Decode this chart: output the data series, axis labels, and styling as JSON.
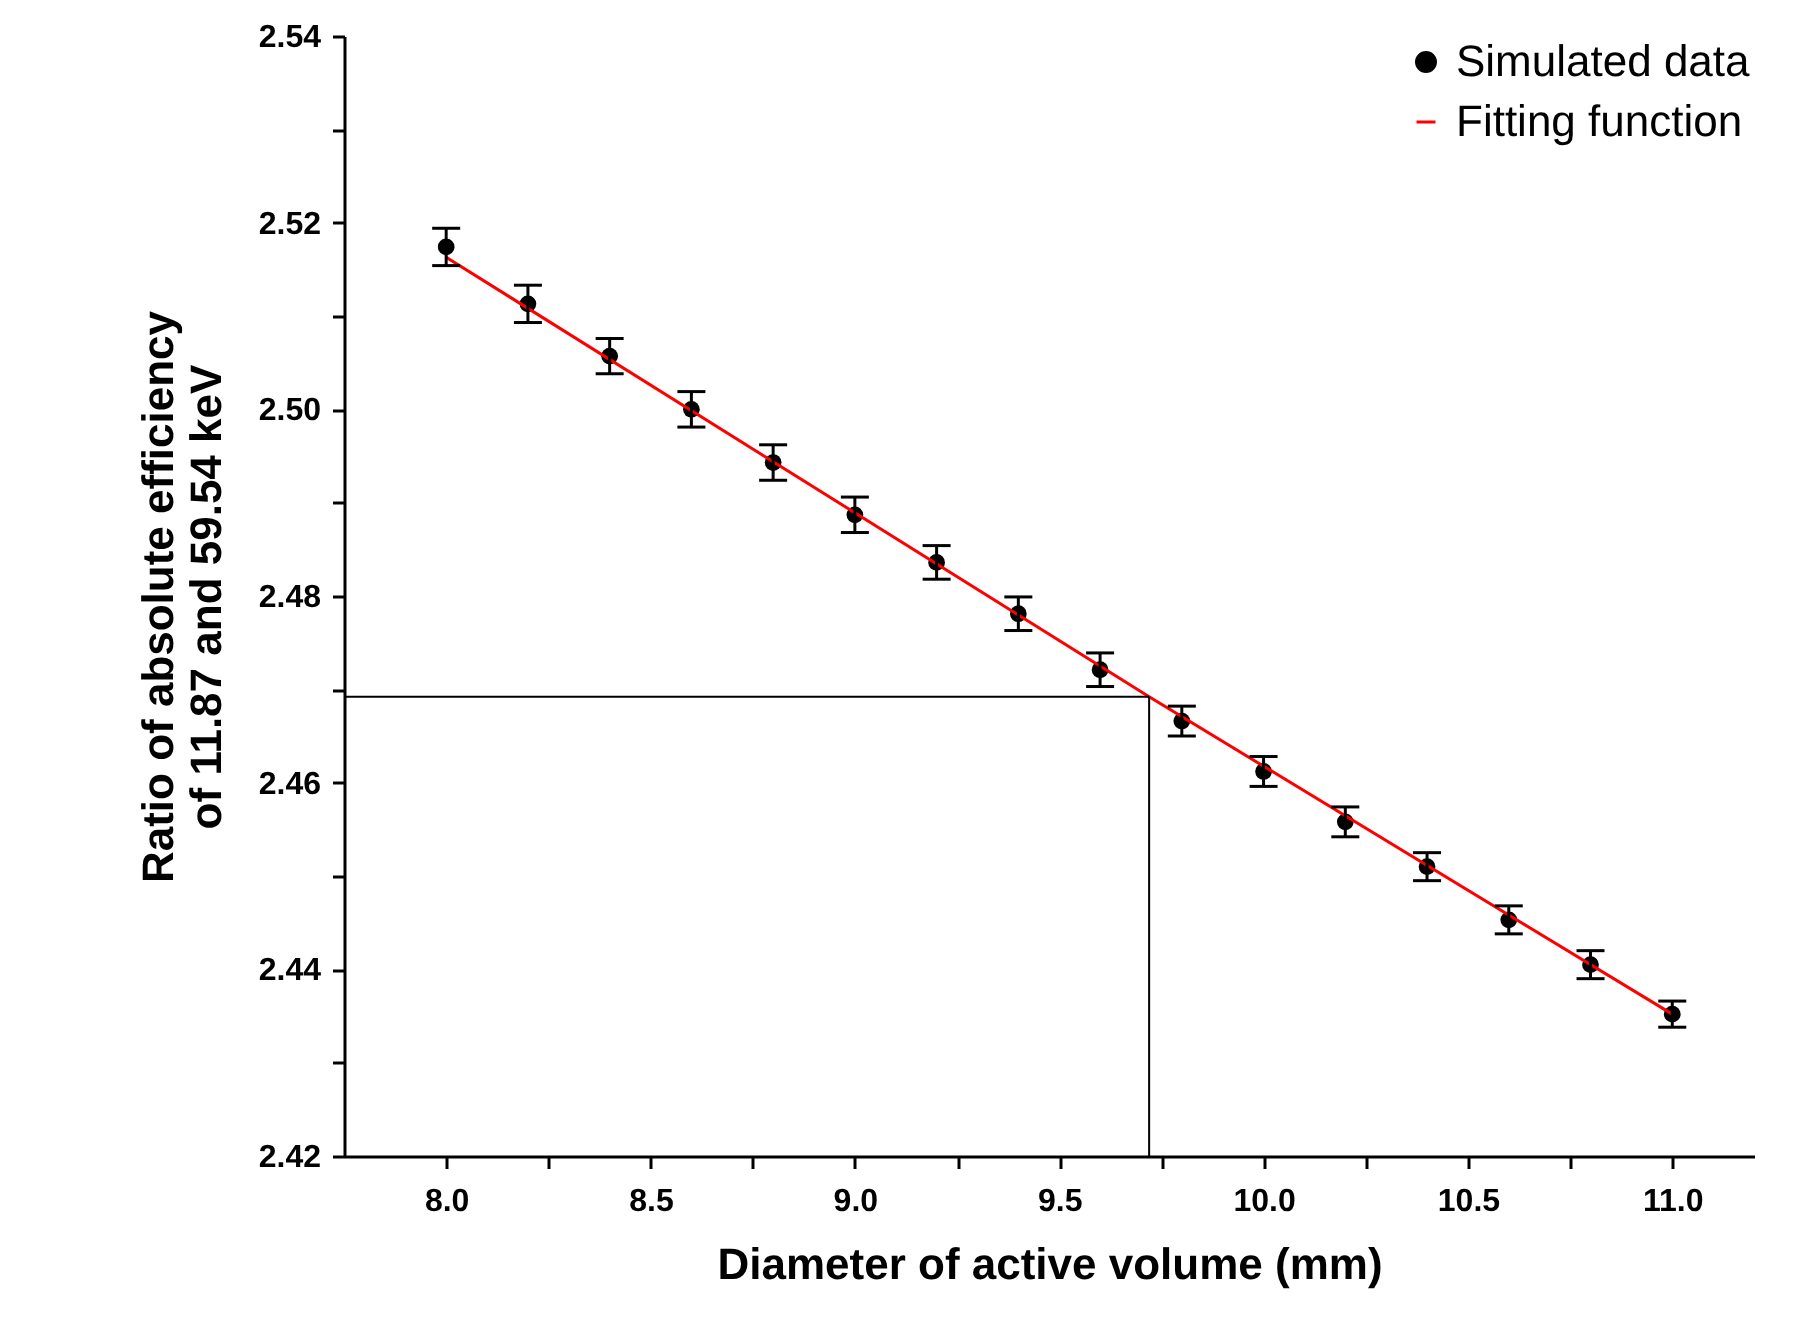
{
  "chart_data": {
    "type": "scatter",
    "xlabel": "Diameter of active volume (mm)",
    "ylabel": "Ratio of absolute efficiency\nof 11.87 and 59.54 keV",
    "x": [
      8.0,
      8.2,
      8.4,
      8.6,
      8.8,
      9.0,
      9.2,
      9.4,
      9.6,
      9.8,
      10.0,
      10.2,
      10.4,
      10.6,
      10.8,
      11.0
    ],
    "series": [
      {
        "name": "Simulated data",
        "marker": "circle",
        "color": "#000000",
        "values": [
          2.5174,
          2.5113,
          2.5057,
          2.5,
          2.4943,
          2.4887,
          2.4836,
          2.4781,
          2.4721,
          2.4666,
          2.4612,
          2.4558,
          2.451,
          2.4453,
          2.4405,
          2.4352
        ],
        "errors": [
          0.002,
          0.002,
          0.0019,
          0.0019,
          0.0019,
          0.0019,
          0.0018,
          0.0018,
          0.0018,
          0.0016,
          0.0016,
          0.0016,
          0.0015,
          0.0015,
          0.0015,
          0.0014
        ]
      },
      {
        "name": "Fitting function",
        "type": "line",
        "marker": "none",
        "color": "#ff0000",
        "x": [
          8.0,
          9.72,
          11.0
        ],
        "values": [
          2.5163,
          2.4692,
          2.4352
        ]
      }
    ],
    "ref_lines": [
      {
        "axis": "x",
        "value": 9.72,
        "color": "#000000"
      },
      {
        "axis": "y",
        "value": 2.4692,
        "color": "#000000"
      }
    ],
    "xlim": [
      7.75,
      11.2
    ],
    "xticks": [
      {
        "value": 8.0,
        "label": "8.0"
      },
      {
        "value": 8.25,
        "label": null
      },
      {
        "value": 8.5,
        "label": "8.5"
      },
      {
        "value": 8.75,
        "label": null
      },
      {
        "value": 9.0,
        "label": "9.0"
      },
      {
        "value": 9.25,
        "label": null
      },
      {
        "value": 9.5,
        "label": "9.5"
      },
      {
        "value": 9.75,
        "label": null
      },
      {
        "value": 10.0,
        "label": "10.0"
      },
      {
        "value": 10.25,
        "label": null
      },
      {
        "value": 10.5,
        "label": "10.5"
      },
      {
        "value": 10.75,
        "label": null
      },
      {
        "value": 11.0,
        "label": "11.0"
      }
    ],
    "ylim": [
      2.42,
      2.54
    ],
    "yticks": [
      2.42,
      {
        "value": 2.43,
        "label": null
      },
      2.44,
      {
        "value": 2.45,
        "label": null
      },
      2.46,
      {
        "value": 2.47,
        "label": null
      },
      2.48,
      {
        "value": 2.49,
        "label": null
      },
      {
        "value": 2.5,
        "label": "2.50"
      },
      {
        "value": 2.51,
        "label": null
      },
      2.52,
      {
        "value": 2.53,
        "label": null
      },
      2.54
    ],
    "legend": "top right",
    "line_style": "solid",
    "grid": false
  }
}
